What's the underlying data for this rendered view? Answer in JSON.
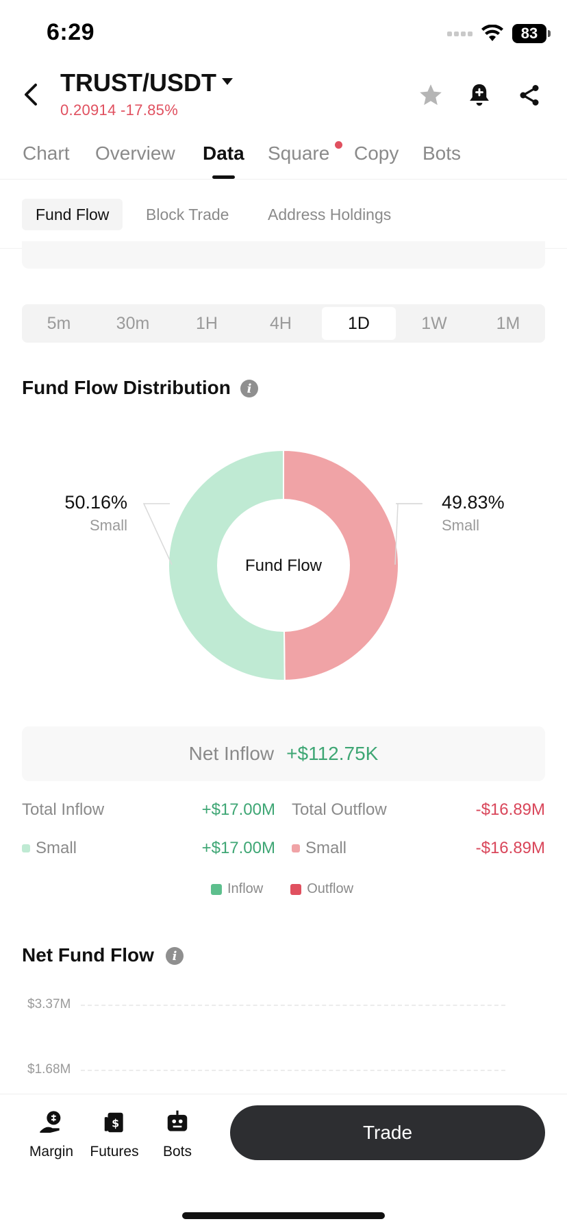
{
  "status_bar": {
    "time": "6:29",
    "battery": "83"
  },
  "header": {
    "pair": "TRUST/USDT",
    "price_change": "0.20914 -17.85%"
  },
  "main_tabs": [
    {
      "label": "Chart",
      "active": false
    },
    {
      "label": "Overview",
      "active": false
    },
    {
      "label": "Data",
      "active": true
    },
    {
      "label": "Square",
      "active": false,
      "has_dot": true
    },
    {
      "label": "Copy",
      "active": false
    },
    {
      "label": "Bots",
      "active": false
    }
  ],
  "sub_tabs": [
    {
      "label": "Fund Flow",
      "active": true
    },
    {
      "label": "Block Trade",
      "active": false
    },
    {
      "label": "Address Holdings",
      "active": false
    }
  ],
  "time_range": {
    "options": [
      "5m",
      "30m",
      "1H",
      "4H",
      "1D",
      "1W",
      "1M"
    ],
    "selected": "1D"
  },
  "distribution": {
    "title": "Fund Flow Distribution",
    "center_label": "Fund Flow",
    "left": {
      "percent": "50.16%",
      "label": "Small"
    },
    "right": {
      "percent": "49.83%",
      "label": "Small"
    }
  },
  "chart_data": {
    "type": "pie",
    "title": "Fund Flow Distribution",
    "categories": [
      "Small Inflow",
      "Small Outflow"
    ],
    "values": [
      50.16,
      49.83
    ],
    "colors": [
      "#bfead3",
      "#f0a3a6"
    ]
  },
  "net": {
    "label": "Net Inflow",
    "value": "+$112.75K"
  },
  "totals": {
    "inflow_label": "Total Inflow",
    "inflow_value": "+$17.00M",
    "outflow_label": "Total Outflow",
    "outflow_value": "-$16.89M",
    "small_in_label": "Small",
    "small_in_value": "+$17.00M",
    "small_out_label": "Small",
    "small_out_value": "-$16.89M"
  },
  "legend": {
    "inflow": "Inflow",
    "outflow": "Outflow"
  },
  "net_fund_flow": {
    "title": "Net Fund Flow",
    "y_ticks": [
      "$3.37M",
      "$1.68M"
    ]
  },
  "bottom_nav": {
    "margin": "Margin",
    "futures": "Futures",
    "bots": "Bots",
    "trade": "Trade"
  },
  "colors": {
    "green": "#3ea674",
    "red": "#d9465a",
    "donut_green": "#bfead3",
    "donut_red": "#f0a3a6"
  }
}
